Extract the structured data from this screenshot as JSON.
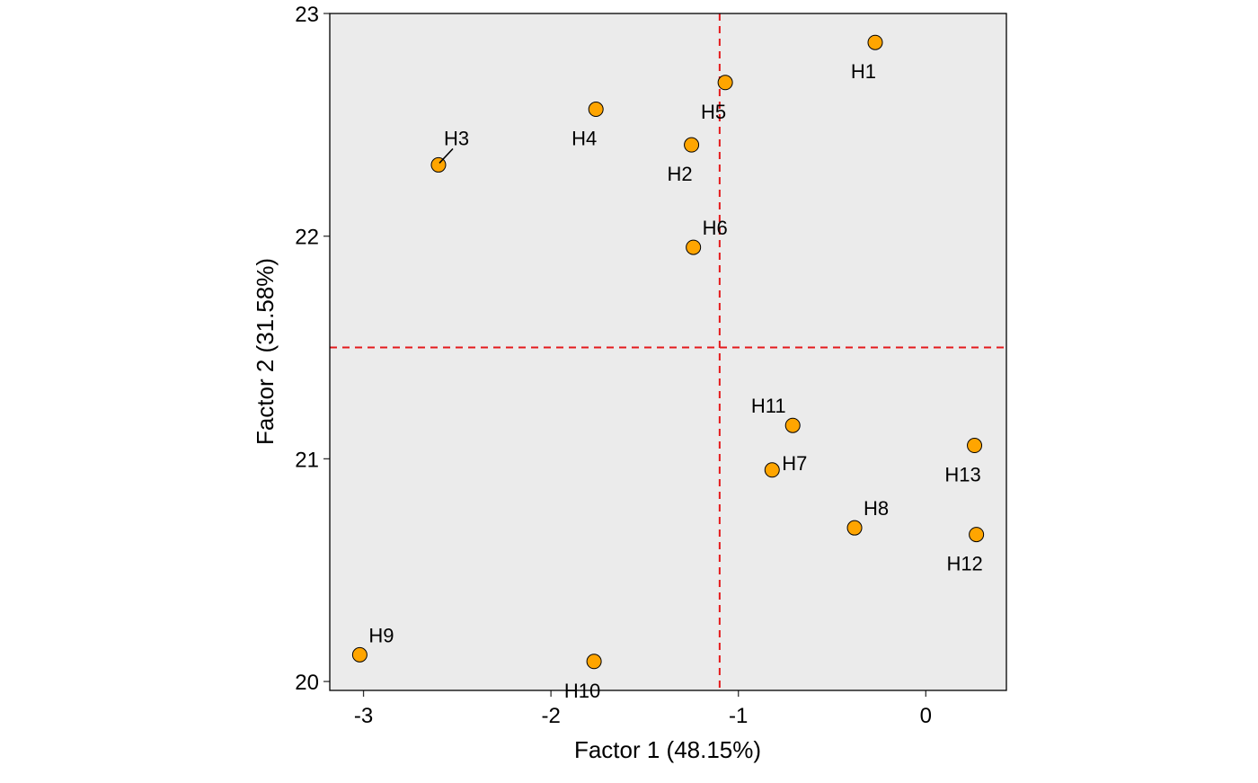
{
  "chart_data": {
    "type": "scatter",
    "xlabel": "Factor 1 (48.15%)",
    "ylabel": "Factor 2 (31.58%)",
    "xlim": [
      -3.18,
      0.43
    ],
    "ylim": [
      19.96,
      23.0
    ],
    "x_ticks": [
      -3,
      -2,
      -1,
      0
    ],
    "y_ticks": [
      20,
      21,
      22,
      23
    ],
    "x_tick_labels": [
      "-3",
      "-2",
      "-1",
      "0"
    ],
    "y_tick_labels": [
      "20",
      "21",
      "22",
      "23"
    ],
    "reference_lines": {
      "x": -1.1,
      "y": 21.5,
      "color": "#e41a1c",
      "style": "dashed"
    },
    "grid": false,
    "panel_background": "#ebebeb",
    "point_color": "#ffa500",
    "points": [
      {
        "label": "H1",
        "x": -0.27,
        "y": 22.87,
        "label_pos": "below-left"
      },
      {
        "label": "H2",
        "x": -1.25,
        "y": 22.41,
        "label_pos": "below-left"
      },
      {
        "label": "H3",
        "x": -2.6,
        "y": 22.32,
        "label_pos": "above-right-leader"
      },
      {
        "label": "H4",
        "x": -1.76,
        "y": 22.57,
        "label_pos": "below-left"
      },
      {
        "label": "H5",
        "x": -1.07,
        "y": 22.69,
        "label_pos": "below-left"
      },
      {
        "label": "H6",
        "x": -1.24,
        "y": 21.95,
        "label_pos": "above-right"
      },
      {
        "label": "H7",
        "x": -0.82,
        "y": 20.95,
        "label_pos": "right"
      },
      {
        "label": "H8",
        "x": -0.38,
        "y": 20.69,
        "label_pos": "above-right"
      },
      {
        "label": "H9",
        "x": -3.02,
        "y": 20.12,
        "label_pos": "above-right"
      },
      {
        "label": "H10",
        "x": -1.77,
        "y": 20.09,
        "label_pos": "below-left"
      },
      {
        "label": "H11",
        "x": -0.71,
        "y": 21.15,
        "label_pos": "above-left"
      },
      {
        "label": "H12",
        "x": 0.27,
        "y": 20.66,
        "label_pos": "below-left"
      },
      {
        "label": "H13",
        "x": 0.26,
        "y": 21.06,
        "label_pos": "below-left"
      }
    ]
  }
}
